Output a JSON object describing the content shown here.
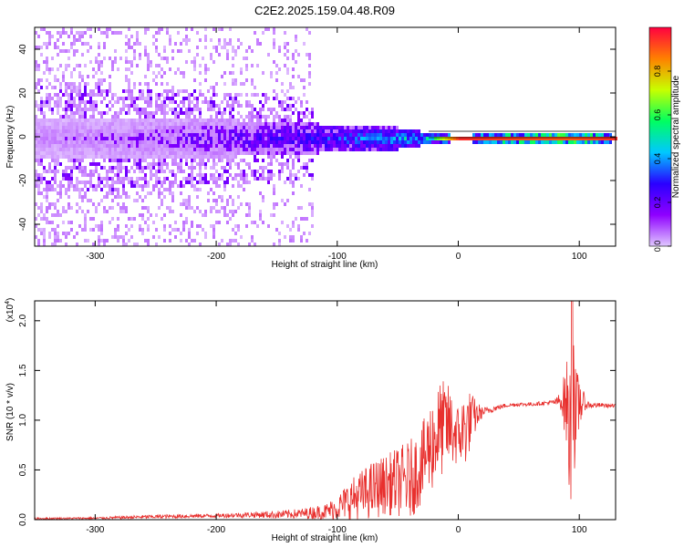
{
  "title": "C2E2.2025.159.04.48.R09",
  "colors": {
    "spectrogram_background": "#ffffff",
    "snr_line": "#e8302e",
    "frame": "#000000"
  },
  "colorbar": {
    "label": "Normalized spectral amplitude",
    "ticks": [
      "0.0",
      "0.2",
      "0.4",
      "0.6",
      "0.8"
    ],
    "colormap": [
      "#e0c8ff",
      "#8f00ff",
      "#2a00ff",
      "#00c8ff",
      "#00ff60",
      "#c8ff00",
      "#ff8000",
      "#ff0040"
    ]
  },
  "chart_data": [
    {
      "type": "heatmap",
      "xlabel": "Height of straight line (km)",
      "ylabel": "Frequency (Hz)",
      "xlim": [
        -350,
        130
      ],
      "ylim": [
        -50,
        50
      ],
      "xticks": [
        "-300",
        "-200",
        "-100",
        "0",
        "100"
      ],
      "yticks": [
        "-40",
        "-20",
        "0",
        "20",
        "40"
      ],
      "description_points": {
        "band_center_hz": 0,
        "band_halfwidth_by_height": [
          {
            "x": -350,
            "halfwidth": 10,
            "peak_amp": 0.15
          },
          {
            "x": -250,
            "halfwidth": 9,
            "peak_amp": 0.2
          },
          {
            "x": -150,
            "halfwidth": 8,
            "peak_amp": 0.3
          },
          {
            "x": -100,
            "halfwidth": 6,
            "peak_amp": 0.4
          },
          {
            "x": -50,
            "halfwidth": 5,
            "peak_amp": 0.5
          },
          {
            "x": -20,
            "halfwidth": 2,
            "peak_amp": 0.6
          },
          {
            "x": 0,
            "halfwidth": 1.5,
            "peak_amp": 0.95
          },
          {
            "x": 90,
            "halfwidth": 3,
            "peak_amp": 0.9
          },
          {
            "x": 130,
            "halfwidth": 1.5,
            "peak_amp": 0.95
          }
        ]
      }
    },
    {
      "type": "line",
      "xlabel": "Height of straight line (km)",
      "ylabel": "SNR (10 * v/v)",
      "scale_label": "(x10",
      "scale_exp": "4",
      "xlim": [
        -350,
        130
      ],
      "ylim": [
        0,
        2.2
      ],
      "xticks": [
        "-300",
        "-200",
        "-100",
        "0",
        "100"
      ],
      "yticks": [
        "0.0",
        "0.5",
        "1.0",
        "1.5",
        "2.0"
      ],
      "series": [
        {
          "x": [
            -350,
            -300,
            -250,
            -200,
            -170,
            -150,
            -130,
            -110,
            -100,
            -90,
            -80,
            -70,
            -60,
            -50,
            -40,
            -30,
            -25,
            -20,
            -15,
            -10,
            -5,
            0,
            5,
            10,
            15,
            20,
            30,
            40,
            50,
            60,
            70,
            80,
            85,
            90,
            93,
            95,
            97,
            100,
            105,
            110,
            120,
            130
          ],
          "y": [
            0.01,
            0.015,
            0.03,
            0.04,
            0.05,
            0.05,
            0.06,
            0.08,
            0.12,
            0.2,
            0.25,
            0.3,
            0.35,
            0.38,
            0.4,
            0.55,
            0.7,
            0.8,
            0.9,
            0.95,
            0.9,
            0.85,
            0.9,
            1.0,
            1.05,
            1.08,
            1.12,
            1.15,
            1.16,
            1.16,
            1.17,
            1.18,
            1.2,
            1.15,
            0.7,
            1.5,
            0.9,
            1.2,
            1.16,
            1.15,
            1.15,
            1.14
          ],
          "noise_amplitude": [
            0.01,
            0.01,
            0.02,
            0.02,
            0.03,
            0.04,
            0.05,
            0.08,
            0.12,
            0.2,
            0.25,
            0.3,
            0.3,
            0.35,
            0.4,
            0.4,
            0.45,
            0.5,
            0.5,
            0.45,
            0.4,
            0.3,
            0.4,
            0.3,
            0.15,
            0.05,
            0.03,
            0.02,
            0.02,
            0.02,
            0.02,
            0.03,
            0.1,
            0.5,
            0.9,
            0.8,
            0.6,
            0.3,
            0.05,
            0.03,
            0.02,
            0.02
          ],
          "peak": {
            "x": 94,
            "y": 2.2
          }
        }
      ]
    }
  ]
}
